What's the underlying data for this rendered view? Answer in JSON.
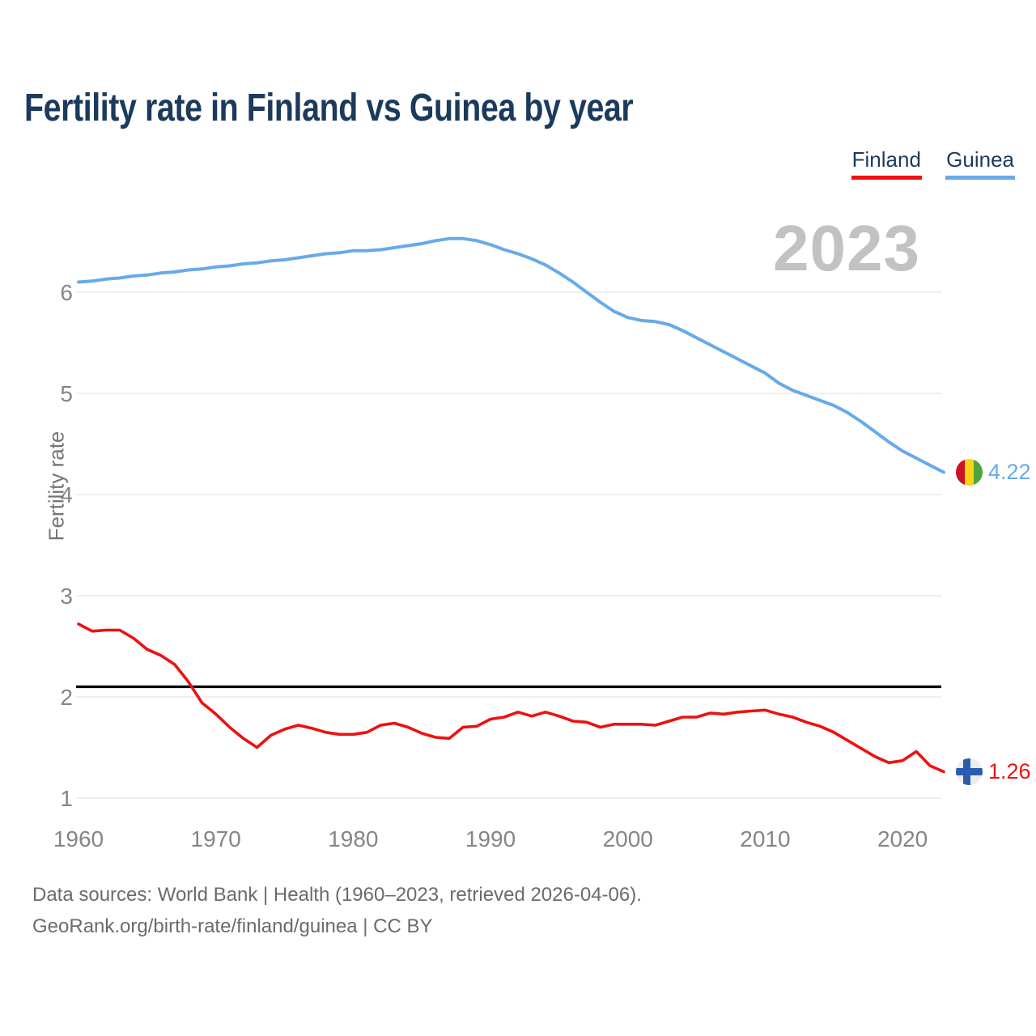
{
  "chart_data": {
    "type": "line",
    "title": "Fertility rate in Finland vs Guinea by year",
    "ylabel": "Fertility rate",
    "xlabel": "",
    "watermark": "2023",
    "grid": "horizontal-only",
    "legend_position": "top-right",
    "xlim": [
      1960,
      2023
    ],
    "ylim": [
      1,
      6.6
    ],
    "x_ticks": [
      1960,
      1970,
      1980,
      1990,
      2000,
      2010,
      2020
    ],
    "y_ticks": [
      1,
      2,
      3,
      4,
      5,
      6
    ],
    "reference_line": {
      "value": 2.1,
      "color": "#000000"
    },
    "x": [
      1960,
      1961,
      1962,
      1963,
      1964,
      1965,
      1966,
      1967,
      1968,
      1969,
      1970,
      1971,
      1972,
      1973,
      1974,
      1975,
      1976,
      1977,
      1978,
      1979,
      1980,
      1981,
      1982,
      1983,
      1984,
      1985,
      1986,
      1987,
      1988,
      1989,
      1990,
      1991,
      1992,
      1993,
      1994,
      1995,
      1996,
      1997,
      1998,
      1999,
      2000,
      2001,
      2002,
      2003,
      2004,
      2005,
      2006,
      2007,
      2008,
      2009,
      2010,
      2011,
      2012,
      2013,
      2014,
      2015,
      2016,
      2017,
      2018,
      2019,
      2020,
      2021,
      2022,
      2023
    ],
    "series": [
      {
        "name": "Finland",
        "color": "#ee1111",
        "end_label": "1.26",
        "values": [
          2.72,
          2.65,
          2.66,
          2.66,
          2.58,
          2.47,
          2.41,
          2.32,
          2.15,
          1.94,
          1.83,
          1.7,
          1.59,
          1.5,
          1.62,
          1.68,
          1.72,
          1.69,
          1.65,
          1.63,
          1.63,
          1.65,
          1.72,
          1.74,
          1.7,
          1.64,
          1.6,
          1.59,
          1.7,
          1.71,
          1.78,
          1.8,
          1.85,
          1.81,
          1.85,
          1.81,
          1.76,
          1.75,
          1.7,
          1.73,
          1.73,
          1.73,
          1.72,
          1.76,
          1.8,
          1.8,
          1.84,
          1.83,
          1.85,
          1.86,
          1.87,
          1.83,
          1.8,
          1.75,
          1.71,
          1.65,
          1.57,
          1.49,
          1.41,
          1.35,
          1.37,
          1.46,
          1.32,
          1.26
        ]
      },
      {
        "name": "Guinea",
        "color": "#68aae8",
        "end_label": "4.22",
        "values": [
          6.1,
          6.11,
          6.13,
          6.14,
          6.16,
          6.17,
          6.19,
          6.2,
          6.22,
          6.23,
          6.25,
          6.26,
          6.28,
          6.29,
          6.31,
          6.32,
          6.34,
          6.36,
          6.38,
          6.39,
          6.41,
          6.41,
          6.42,
          6.44,
          6.46,
          6.48,
          6.51,
          6.53,
          6.53,
          6.51,
          6.47,
          6.42,
          6.38,
          6.33,
          6.27,
          6.19,
          6.1,
          6.0,
          5.9,
          5.81,
          5.75,
          5.72,
          5.71,
          5.68,
          5.62,
          5.55,
          5.48,
          5.41,
          5.34,
          5.27,
          5.2,
          5.1,
          5.03,
          4.98,
          4.93,
          4.88,
          4.81,
          4.72,
          4.62,
          4.52,
          4.43,
          4.36,
          4.29,
          4.22
        ]
      }
    ],
    "end_markers": {
      "finland": {
        "icon": "finland-flag-icon",
        "background": "#ededed",
        "cross": "#2a5db0"
      },
      "guinea": {
        "icon": "guinea-flag-icon",
        "stripes": [
          "#ce1126",
          "#fcd116",
          "#4fa53c"
        ]
      }
    },
    "colors": {
      "title": "#1b3a5c",
      "grid": "#e8e8e8",
      "tick": "#858585",
      "watermark": "#c2c2c2",
      "footer": "#6b6b6b"
    }
  },
  "footer": {
    "line1": "Data sources: World Bank | Health (1960–2023, retrieved 2026-04-06).",
    "line2": "GeoRank.org/birth-rate/finland/guinea | CC BY"
  }
}
